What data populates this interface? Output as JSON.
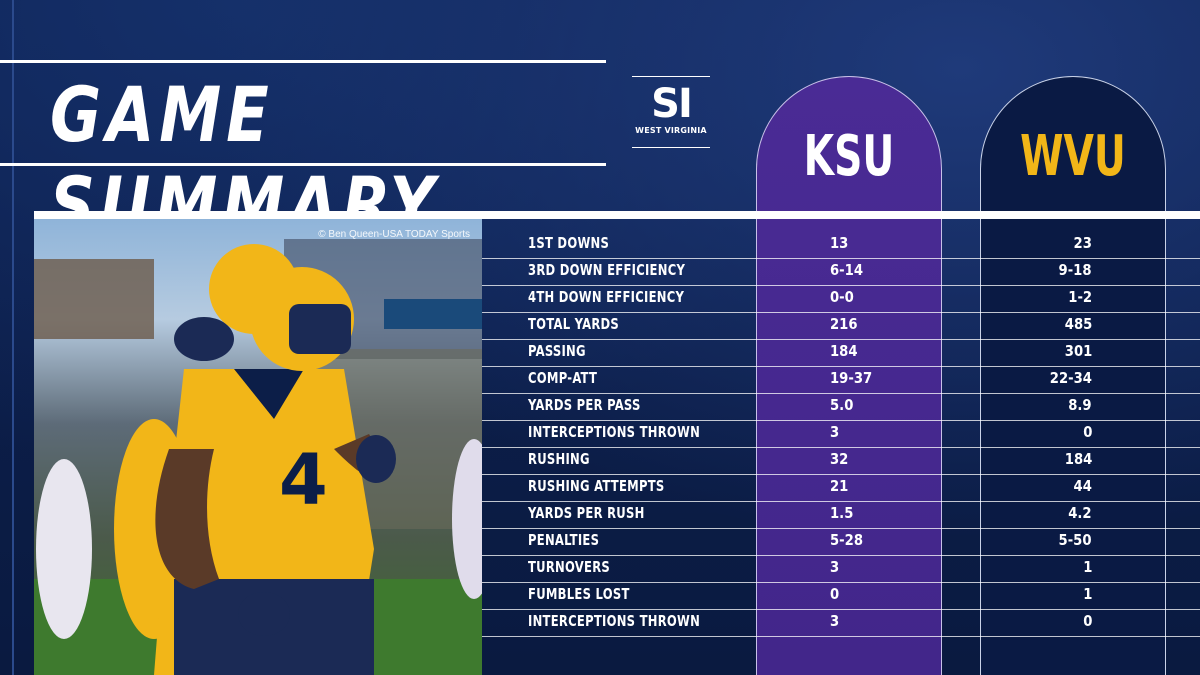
{
  "header": {
    "title": "GAME SUMMARY",
    "logo": {
      "mark": "SI",
      "subtitle": "WEST VIRGINIA"
    }
  },
  "teams": [
    {
      "name": "KSU",
      "color": "#ffffff",
      "column_color": "#4a2b95"
    },
    {
      "name": "WVU",
      "color": "#f2b618",
      "column_color": "#0a1a44"
    }
  ],
  "photo": {
    "credit": "© Ben Queen-USA TODAY Sports"
  },
  "stats": [
    {
      "label": "1ST DOWNS",
      "ksu": "13",
      "wvu": "23"
    },
    {
      "label": "3RD DOWN EFFICIENCY",
      "ksu": "6-14",
      "wvu": "9-18"
    },
    {
      "label": "4TH DOWN EFFICIENCY",
      "ksu": "0-0",
      "wvu": "1-2"
    },
    {
      "label": "TOTAL YARDS",
      "ksu": "216",
      "wvu": "485"
    },
    {
      "label": "PASSING",
      "ksu": "184",
      "wvu": "301"
    },
    {
      "label": "COMP-ATT",
      "ksu": "19-37",
      "wvu": "22-34"
    },
    {
      "label": "YARDS PER PASS",
      "ksu": "5.0",
      "wvu": "8.9"
    },
    {
      "label": "INTERCEPTIONS THROWN",
      "ksu": "3",
      "wvu": "0"
    },
    {
      "label": "RUSHING",
      "ksu": "32",
      "wvu": "184"
    },
    {
      "label": "RUSHING ATTEMPTS",
      "ksu": "21",
      "wvu": "44"
    },
    {
      "label": "YARDS PER RUSH",
      "ksu": "1.5",
      "wvu": "4.2"
    },
    {
      "label": "PENALTIES",
      "ksu": "5-28",
      "wvu": "5-50"
    },
    {
      "label": "TURNOVERS",
      "ksu": "3",
      "wvu": "1"
    },
    {
      "label": "FUMBLES LOST",
      "ksu": "0",
      "wvu": "1"
    },
    {
      "label": "INTERCEPTIONS THROWN",
      "ksu": "3",
      "wvu": "0"
    }
  ]
}
